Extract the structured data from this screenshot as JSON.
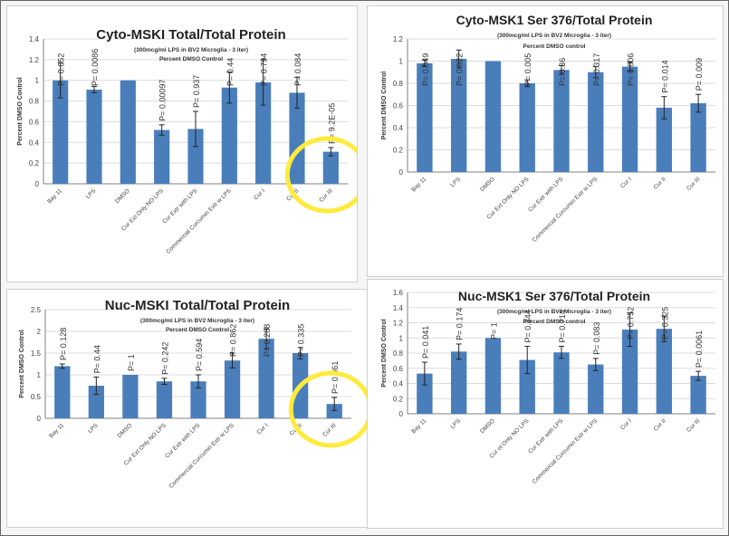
{
  "colors": {
    "bar": "#4a7ebb",
    "axis": "#808080",
    "grid": "#dcdcdc",
    "highlight": "#ffeb3b"
  },
  "chart_data": [
    {
      "type": "bar",
      "title": "Cyto-MSKI Total/Total Protein",
      "subtitle": "(300mcg/ml LPS in BV2 Microglia - 3 iter)",
      "subtitle2": "Percent DMSO Control",
      "ylabel": "Percent DMSO Control",
      "ylim": [
        0,
        1.4
      ],
      "yticks": [
        "0",
        "0.2",
        "0.4",
        "0.6",
        "0.8",
        "1",
        "1.2",
        "1.4"
      ],
      "categories": [
        "Bay 11",
        "LPS",
        "DMSO",
        "Cur Ext Only NO LPS",
        "Cur Extr with LPS",
        "Commercial Curcumin Extr w LPS",
        "Cur I",
        "Cur II",
        "Cur III"
      ],
      "values": [
        1.0,
        0.91,
        1.0,
        0.52,
        0.53,
        0.93,
        0.98,
        0.88,
        0.31
      ],
      "errors": [
        0.17,
        0.03,
        0.0,
        0.05,
        0.17,
        0.15,
        0.22,
        0.15,
        0.04
      ],
      "pvalues": [
        "P= 0.652",
        "P= 0.0086",
        "",
        "P= 0.00097",
        "P= 0.937",
        "P= 0.44",
        "P= 0.794",
        "P= 0.084",
        "P= 9.2E-05"
      ],
      "highlighted_bar": 8
    },
    {
      "type": "bar",
      "title": "Cyto-MSK1 Ser 376/Total Protein",
      "subtitle": "(300mcg/ml LPS in BV2 Microglia - 3 iter)",
      "subtitle2": "Percent DMSO control",
      "ylabel": "Percent DMSO Control",
      "ylim": [
        0,
        1.2
      ],
      "yticks": [
        "0",
        "0.2",
        "0.4",
        "0.6",
        "0.8",
        "1",
        "1.2"
      ],
      "categories": [
        "Bay 11",
        "LPS",
        "DMSO",
        "Cur Ext Only NO LPS",
        "Cur Extr with LPS",
        "Commercial Curcumin Extr w LPS",
        "Cur I",
        "Cur II",
        "Cur III"
      ],
      "values": [
        0.98,
        1.02,
        1.0,
        0.8,
        0.92,
        0.9,
        0.95,
        0.58,
        0.62
      ],
      "errors": [
        0.03,
        0.08,
        0.0,
        0.03,
        0.04,
        0.05,
        0.04,
        0.1,
        0.08
      ],
      "pvalues": [
        "P= 0.549",
        "P= 0.822",
        "",
        "P= 0.005",
        "P= 0.36",
        "P= 0.317",
        "P= 0.806",
        "P= 0.014",
        "P= 0.009"
      ],
      "highlighted_bar": null
    },
    {
      "type": "bar",
      "title": "Nuc-MSKI Total/Total Protein",
      "subtitle": "(300mcg/ml LPS in BV2 Microglia - 3 iter)",
      "subtitle2": "Percent DMSO Control",
      "ylabel": "Percent DMSO Control",
      "ylim": [
        0,
        2.5
      ],
      "yticks": [
        "0",
        "0.5",
        "1",
        "1.5",
        "2",
        "2.5"
      ],
      "categories": [
        "Bay 11",
        "LPS",
        "DMSO",
        "Cur Ext Only NO LPS",
        "Cur Extr with LPS",
        "Commercial Curcumin Extr w LPS",
        "Cur I",
        "Cur II",
        "Cur III"
      ],
      "values": [
        1.2,
        0.75,
        1.0,
        0.85,
        0.85,
        1.33,
        1.83,
        1.5,
        0.33
      ],
      "errors": [
        0.05,
        0.2,
        0.0,
        0.07,
        0.15,
        0.17,
        0.23,
        0.13,
        0.15
      ],
      "pvalues": [
        "P= 0.128",
        "P= 0.44",
        "P= 1",
        "P= 0.242",
        "P= 0.594",
        "P= 0.862",
        "P= 0.288",
        "P= 0.335",
        "P= 0.061"
      ],
      "highlighted_bar": 8
    },
    {
      "type": "bar",
      "title": "Nuc-MSK1 Ser 376/Total Protein",
      "subtitle": "(300mcg/ml LPS in BV2 Microglia - 3 iter)",
      "subtitle2": "Percent DMSO control",
      "ylabel": "Percent DMSO Control",
      "ylim": [
        0,
        1.6
      ],
      "yticks": [
        "0",
        "0.2",
        "0.4",
        "0.6",
        "0.8",
        "1",
        "1.2",
        "1.4",
        "1.6"
      ],
      "categories": [
        "Bay 11",
        "LPS",
        "DMSO",
        "Cur ot Only NO LPS",
        "Cur Extr with LPS",
        "Commercial Curcumin Extr w LPS",
        "Cur I",
        "Cur II",
        "Cur III"
      ],
      "values": [
        0.53,
        0.82,
        1.0,
        0.71,
        0.81,
        0.65,
        1.11,
        1.12,
        0.5
      ],
      "errors": [
        0.15,
        0.1,
        0.0,
        0.18,
        0.08,
        0.08,
        0.22,
        0.17,
        0.06
      ],
      "pvalues": [
        "P= 0.041",
        "P= 0.174",
        "P= 1",
        "P= 0.344",
        "P= 0.714",
        "P= 0.083",
        "P= 0.752",
        "P= 0.325",
        "P= 0.0061"
      ],
      "highlighted_bar": null
    }
  ]
}
